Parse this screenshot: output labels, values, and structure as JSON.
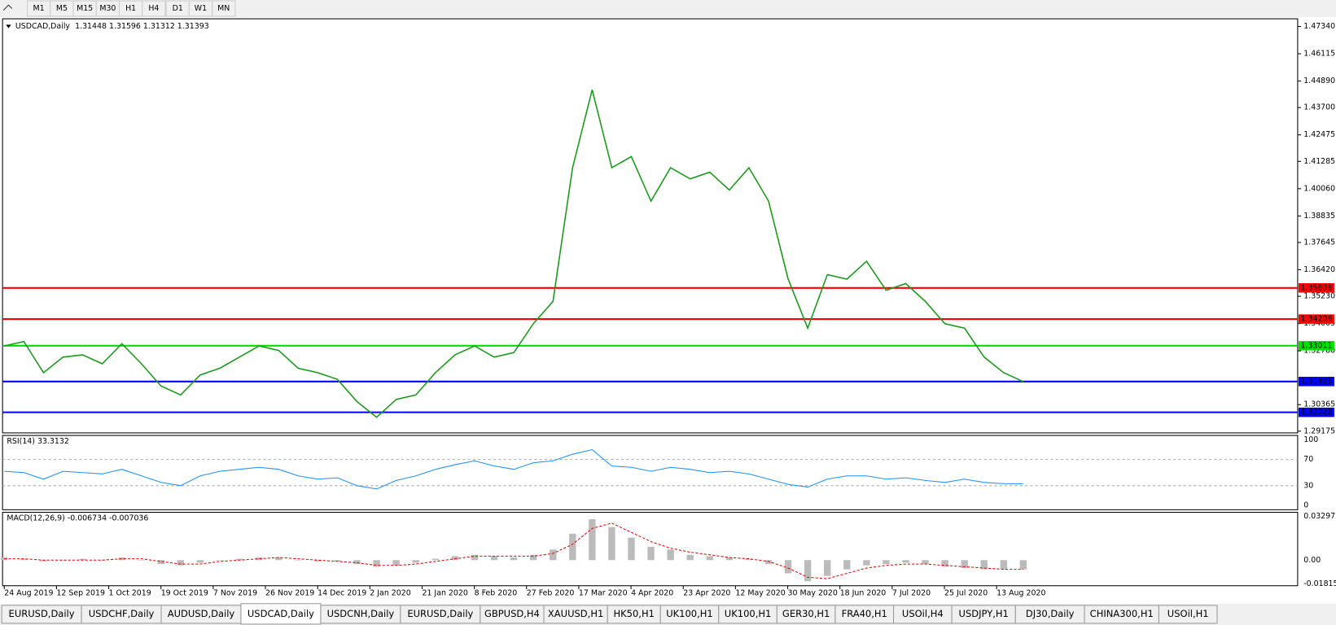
{
  "toolbar": {
    "timeframes": [
      "M1",
      "M5",
      "M15",
      "M30",
      "H1",
      "H4",
      "D1",
      "W1",
      "MN"
    ]
  },
  "main_chart": {
    "type": "line",
    "title": "USDCAD,Daily",
    "ohlc": "1.31448 1.31596 1.31312 1.31393",
    "color": "#1a9a1a",
    "ylim": [
      1.47685,
      1.29098
    ],
    "yticks": [
      {
        "value": 1.4734,
        "label": "1.47340"
      },
      1.46115,
      {
        "value": 1.4489,
        "label": "1.44890"
      },
      {
        "value": 1.437,
        "label": "1.43700"
      },
      1.42475,
      1.41285,
      {
        "value": 1.4006,
        "label": "1.40060"
      },
      1.38835,
      1.37645,
      {
        "value": 1.3642,
        "label": "1.36420"
      },
      {
        "value": 1.3523,
        "label": "1.35230"
      },
      1.34005,
      {
        "value": 1.3278,
        "label": "1.32780"
      },
      1.30365,
      1.29175
    ],
    "levels": [
      {
        "value": 1.35606,
        "color": "#ff0000"
      },
      {
        "value": 1.34206,
        "color": "#ff0000"
      },
      {
        "value": 1.33011,
        "color": "#00e000"
      },
      {
        "value": 1.31405,
        "color": "#0000ff"
      },
      {
        "value": 1.30022,
        "color": "#0000ff"
      }
    ],
    "closes": [
      1.33,
      1.332,
      1.318,
      1.325,
      1.326,
      1.322,
      1.331,
      1.322,
      1.312,
      1.308,
      1.317,
      1.32,
      1.325,
      1.33,
      1.328,
      1.32,
      1.318,
      1.315,
      1.305,
      1.298,
      1.306,
      1.308,
      1.318,
      1.326,
      1.33,
      1.325,
      1.327,
      1.34,
      1.35,
      1.41,
      1.445,
      1.41,
      1.415,
      1.395,
      1.41,
      1.405,
      1.408,
      1.4,
      1.41,
      1.395,
      1.36,
      1.338,
      1.362,
      1.36,
      1.368,
      1.355,
      1.358,
      1.35,
      1.34,
      1.338,
      1.325,
      1.318,
      1.314
    ]
  },
  "rsi": {
    "title": "RSI(14) 33.3132",
    "color": "#1e90ff",
    "ylim": [
      106.7,
      -6.7
    ],
    "yticks": [
      100,
      70,
      30,
      0
    ],
    "levels": [
      70,
      30
    ],
    "values": [
      52,
      50,
      40,
      52,
      50,
      48,
      55,
      45,
      35,
      30,
      45,
      52,
      55,
      58,
      55,
      45,
      40,
      42,
      30,
      25,
      38,
      45,
      55,
      62,
      68,
      60,
      55,
      65,
      68,
      78,
      85,
      60,
      58,
      52,
      58,
      55,
      50,
      52,
      48,
      40,
      32,
      28,
      40,
      45,
      45,
      40,
      42,
      38,
      35,
      40,
      35,
      33,
      33
    ]
  },
  "macd": {
    "title": "MACD(12,26,9) -0.006734 -0.007036",
    "ylim": [
      0.036204,
      -0.01939
    ],
    "yticks": [
      0.032972,
      {
        "value": 0,
        "label": "0.00"
      },
      -0.018154
    ],
    "histogram": [
      0.002,
      0.001,
      -0.001,
      0,
      0.001,
      0,
      0.002,
      0,
      -0.003,
      -0.004,
      -0.002,
      0,
      0.001,
      0.002,
      0.002,
      0,
      -0.001,
      -0.001,
      -0.003,
      -0.005,
      -0.004,
      -0.002,
      0.001,
      0.003,
      0.004,
      0.003,
      0.002,
      0.004,
      0.008,
      0.02,
      0.031,
      0.025,
      0.017,
      0.01,
      0.008,
      0.004,
      0.003,
      0.002,
      0.001,
      -0.003,
      -0.01,
      -0.016,
      -0.012,
      -0.007,
      -0.004,
      -0.003,
      -0.002,
      -0.003,
      -0.005,
      -0.006,
      -0.007,
      -0.007,
      -0.007
    ],
    "signal": [
      0.001,
      0.001,
      0,
      0,
      0,
      0,
      0.001,
      0.001,
      -0.001,
      -0.003,
      -0.003,
      -0.001,
      0,
      0.001,
      0.002,
      0.001,
      0,
      -0.001,
      -0.002,
      -0.004,
      -0.004,
      -0.003,
      -0.001,
      0.001,
      0.003,
      0.003,
      0.003,
      0.003,
      0.005,
      0.012,
      0.024,
      0.028,
      0.021,
      0.014,
      0.009,
      0.006,
      0.004,
      0.002,
      0.001,
      -0.001,
      -0.006,
      -0.013,
      -0.014,
      -0.01,
      -0.006,
      -0.004,
      -0.003,
      -0.003,
      -0.004,
      -0.005,
      -0.006,
      -0.007,
      -0.007
    ]
  },
  "x_labels": [
    "24 Aug 2019",
    "12 Sep 2019",
    "1 Oct 2019",
    "19 Oct 2019",
    "7 Nov 2019",
    "26 Nov 2019",
    "14 Dec 2019",
    "2 Jan 2020",
    "21 Jan 2020",
    "8 Feb 2020",
    "27 Feb 2020",
    "17 Mar 2020",
    "4 Apr 2020",
    "23 Apr 2020",
    "12 May 2020",
    "30 May 2020",
    "18 Jun 2020",
    "7 Jul 2020",
    "25 Jul 2020",
    "13 Aug 2020"
  ],
  "tabs": {
    "items": [
      "EURUSD,Daily",
      "USDCHF,Daily",
      "AUDUSD,Daily",
      "USDCAD,Daily",
      "USDCNH,Daily",
      "EURUSD,Daily",
      "GBPUSD,H4",
      "XAUUSD,H1",
      "HK50,H1",
      "UK100,H1",
      "UK100,H1",
      "GER30,H1",
      "FRA40,H1",
      "USOil,H4",
      "USDJPY,H1",
      "DJ30,Daily",
      "CHINA300,H1",
      "USOil,H1"
    ],
    "active": 3
  }
}
